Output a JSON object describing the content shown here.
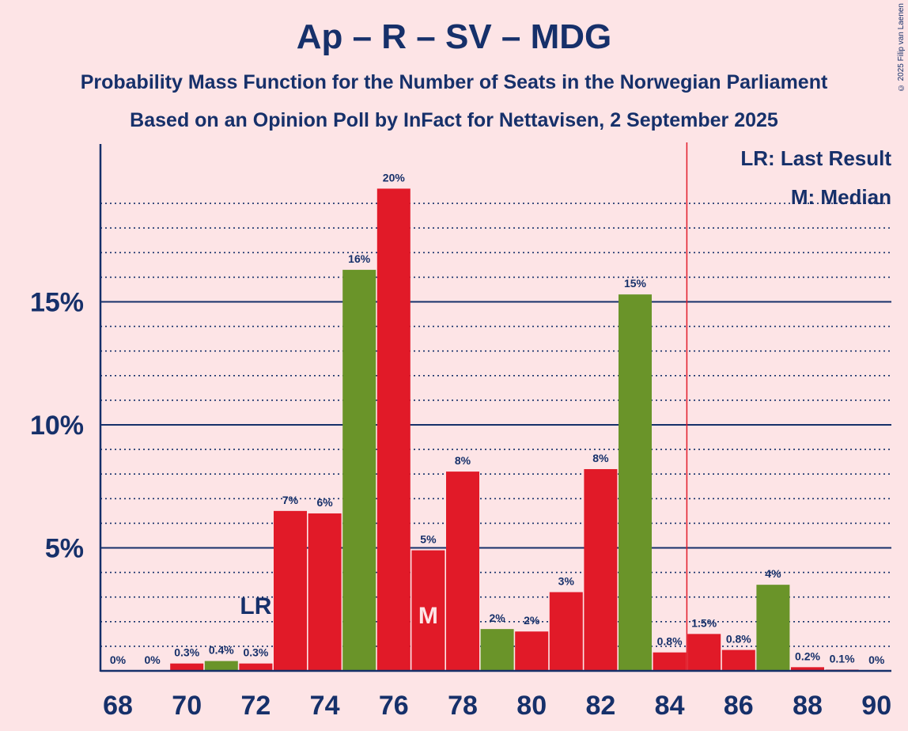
{
  "header": {
    "title": "Ap – R – SV – MDG",
    "subtitle": "Probability Mass Function for the Number of Seats in the Norwegian Parliament",
    "subtitle2": "Based on an Opinion Poll by InFact for Nettavisen, 2 September 2025",
    "copyright": "© 2025 Filip van Laenen"
  },
  "legend": {
    "last_result": "LR: Last Result",
    "median": "M: Median"
  },
  "colors": {
    "background": "#fde4e6",
    "text": "#16306a",
    "red_bar": "#e11a28",
    "green_bar": "#6a9429",
    "last_result_line": "#e11a28"
  },
  "chart_data": {
    "type": "bar",
    "x": [
      68,
      69,
      70,
      71,
      72,
      73,
      74,
      75,
      76,
      77,
      78,
      79,
      80,
      81,
      82,
      83,
      84,
      85,
      86,
      87,
      88,
      89,
      90
    ],
    "values": [
      0,
      0,
      0.3,
      0.4,
      0.3,
      6.5,
      6.4,
      16.3,
      19.6,
      4.9,
      8.1,
      1.7,
      1.6,
      3.2,
      8.2,
      15.3,
      0.75,
      1.5,
      0.85,
      3.5,
      0.15,
      0.05,
      0
    ],
    "labels": [
      "0%",
      "0%",
      "0.3%",
      "0.4%",
      "0.3%",
      "7%",
      "6%",
      "16%",
      "20%",
      "5%",
      "8%",
      "2%",
      "2%",
      "3%",
      "8%",
      "15%",
      "0.8%",
      "1.5%",
      "0.8%",
      "4%",
      "0.2%",
      "0.1%",
      "0%"
    ],
    "colors": [
      "red",
      "red",
      "red",
      "green",
      "red",
      "red",
      "red",
      "green",
      "red",
      "red",
      "red",
      "green",
      "red",
      "red",
      "red",
      "green",
      "red",
      "red",
      "red",
      "green",
      "red",
      "red",
      "red"
    ],
    "x_ticks": [
      "68",
      "70",
      "72",
      "74",
      "76",
      "78",
      "80",
      "82",
      "84",
      "86",
      "88",
      "90"
    ],
    "y_ticks": [
      {
        "value": 5,
        "label": "5%"
      },
      {
        "value": 10,
        "label": "10%"
      },
      {
        "value": 15,
        "label": "15%"
      }
    ],
    "ylim": [
      0,
      21.3
    ],
    "last_result": {
      "seat": 72,
      "label": "LR"
    },
    "median": {
      "seat": 77,
      "label": "M"
    },
    "majority_line_after": 84
  }
}
